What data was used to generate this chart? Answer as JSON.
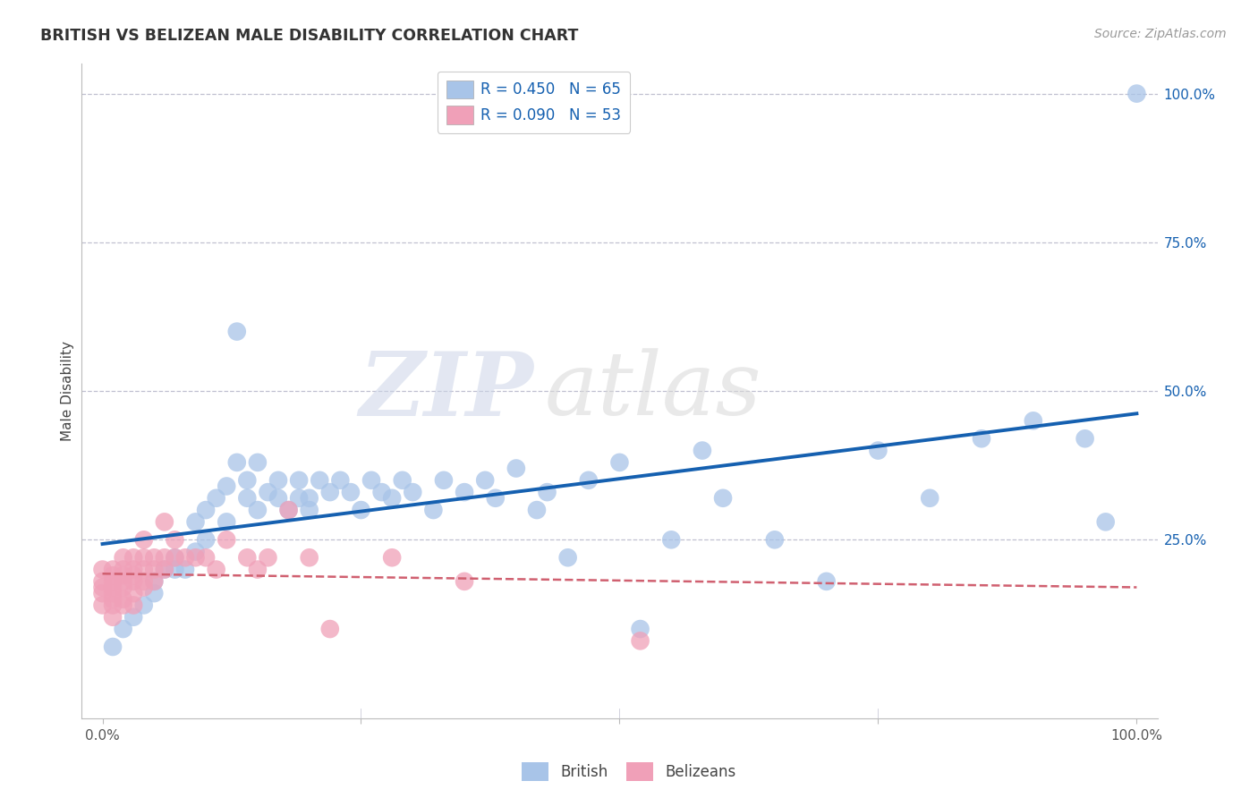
{
  "title": "BRITISH VS BELIZEAN MALE DISABILITY CORRELATION CHART",
  "source_text": "Source: ZipAtlas.com",
  "ylabel": "Male Disability",
  "xlim": [
    -0.02,
    1.02
  ],
  "ylim": [
    -0.05,
    1.05
  ],
  "legend_r1": "R = 0.450",
  "legend_n1": "N = 65",
  "legend_r2": "R = 0.090",
  "legend_n2": "N = 53",
  "british_color": "#a8c4e8",
  "belizean_color": "#f0a0b8",
  "british_line_color": "#1560b0",
  "belizean_line_color": "#d06070",
  "grid_color": "#c0c0d0",
  "background_color": "#ffffff",
  "watermark_zip": "ZIP",
  "watermark_atlas": "atlas",
  "british_x": [
    0.01,
    0.02,
    0.03,
    0.04,
    0.05,
    0.05,
    0.06,
    0.07,
    0.07,
    0.08,
    0.09,
    0.09,
    0.1,
    0.1,
    0.11,
    0.12,
    0.12,
    0.13,
    0.13,
    0.14,
    0.14,
    0.15,
    0.15,
    0.16,
    0.17,
    0.17,
    0.18,
    0.19,
    0.19,
    0.2,
    0.2,
    0.21,
    0.22,
    0.23,
    0.24,
    0.25,
    0.26,
    0.27,
    0.28,
    0.29,
    0.3,
    0.32,
    0.33,
    0.35,
    0.37,
    0.38,
    0.4,
    0.42,
    0.43,
    0.45,
    0.47,
    0.5,
    0.52,
    0.55,
    0.58,
    0.6,
    0.65,
    0.7,
    0.75,
    0.8,
    0.85,
    0.9,
    0.95,
    0.97,
    1.0
  ],
  "british_y": [
    0.07,
    0.1,
    0.12,
    0.14,
    0.16,
    0.18,
    0.2,
    0.22,
    0.2,
    0.2,
    0.23,
    0.28,
    0.25,
    0.3,
    0.32,
    0.34,
    0.28,
    0.6,
    0.38,
    0.35,
    0.32,
    0.3,
    0.38,
    0.33,
    0.35,
    0.32,
    0.3,
    0.32,
    0.35,
    0.3,
    0.32,
    0.35,
    0.33,
    0.35,
    0.33,
    0.3,
    0.35,
    0.33,
    0.32,
    0.35,
    0.33,
    0.3,
    0.35,
    0.33,
    0.35,
    0.32,
    0.37,
    0.3,
    0.33,
    0.22,
    0.35,
    0.38,
    0.1,
    0.25,
    0.4,
    0.32,
    0.25,
    0.18,
    0.4,
    0.32,
    0.42,
    0.45,
    0.42,
    0.28,
    1.0
  ],
  "belizean_x": [
    0.0,
    0.0,
    0.0,
    0.0,
    0.0,
    0.01,
    0.01,
    0.01,
    0.01,
    0.01,
    0.01,
    0.01,
    0.01,
    0.02,
    0.02,
    0.02,
    0.02,
    0.02,
    0.02,
    0.02,
    0.03,
    0.03,
    0.03,
    0.03,
    0.03,
    0.03,
    0.04,
    0.04,
    0.04,
    0.04,
    0.04,
    0.05,
    0.05,
    0.05,
    0.06,
    0.06,
    0.06,
    0.07,
    0.07,
    0.08,
    0.09,
    0.1,
    0.11,
    0.12,
    0.14,
    0.15,
    0.16,
    0.18,
    0.2,
    0.22,
    0.28,
    0.35,
    0.52
  ],
  "belizean_y": [
    0.14,
    0.16,
    0.17,
    0.18,
    0.2,
    0.12,
    0.14,
    0.15,
    0.16,
    0.17,
    0.18,
    0.19,
    0.2,
    0.14,
    0.15,
    0.17,
    0.18,
    0.19,
    0.2,
    0.22,
    0.14,
    0.16,
    0.18,
    0.19,
    0.2,
    0.22,
    0.17,
    0.18,
    0.2,
    0.22,
    0.25,
    0.18,
    0.2,
    0.22,
    0.2,
    0.22,
    0.28,
    0.22,
    0.25,
    0.22,
    0.22,
    0.22,
    0.2,
    0.25,
    0.22,
    0.2,
    0.22,
    0.3,
    0.22,
    0.1,
    0.22,
    0.18,
    0.08
  ]
}
